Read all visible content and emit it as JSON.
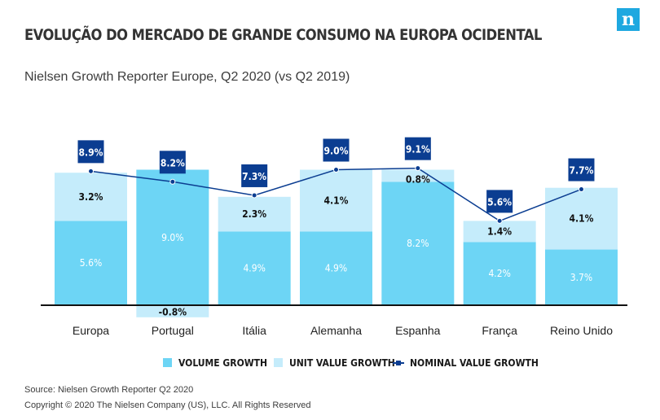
{
  "header": {
    "title": "EVOLUÇÃO DO MERCADO DE GRANDE CONSUMO NA EUROPA OCIDENTAL",
    "subtitle": "Nielsen Growth Reporter Europe, Q2 2020 (vs Q2 2019)",
    "logo_letter": "n"
  },
  "footer": {
    "source": "Source: Nielsen Growth Reporter Q2 2020",
    "copyright": "Copyright © 2020 The Nielsen Company (US), LLC. All Rights Reserved"
  },
  "chart_data": {
    "type": "bar",
    "stacked": true,
    "categories": [
      "Europa",
      "Portugal",
      "Itália",
      "Alemanha",
      "Espanha",
      "França",
      "Reino Unido"
    ],
    "series": [
      {
        "name": "VOLUME GROWTH",
        "values": [
          5.6,
          9.0,
          4.9,
          4.9,
          8.2,
          4.2,
          3.7
        ],
        "labels": [
          "5.6%",
          "9.0%",
          "4.9%",
          "4.9%",
          "8.2%",
          "4.2%",
          "3.7%"
        ],
        "color": "#6dd5f5"
      },
      {
        "name": "UNIT VALUE GROWTH",
        "values": [
          3.2,
          -0.8,
          2.3,
          4.1,
          0.8,
          1.4,
          4.1
        ],
        "labels": [
          "3.2%",
          "-0.8%",
          "2.3%",
          "4.1%",
          "0.8%",
          "1.4%",
          "4.1%"
        ],
        "color": "#c5ecfb"
      },
      {
        "name": "NOMINAL VALUE GROWTH",
        "type": "line",
        "values": [
          8.9,
          8.2,
          7.3,
          9.0,
          9.1,
          5.6,
          7.7
        ],
        "labels": [
          "8.9%",
          "8.2%",
          "7.3%",
          "9.0%",
          "9.1%",
          "5.6%",
          "7.7%"
        ],
        "color": "#0b3d91"
      }
    ],
    "legend_position": "bottom",
    "grid": false
  }
}
